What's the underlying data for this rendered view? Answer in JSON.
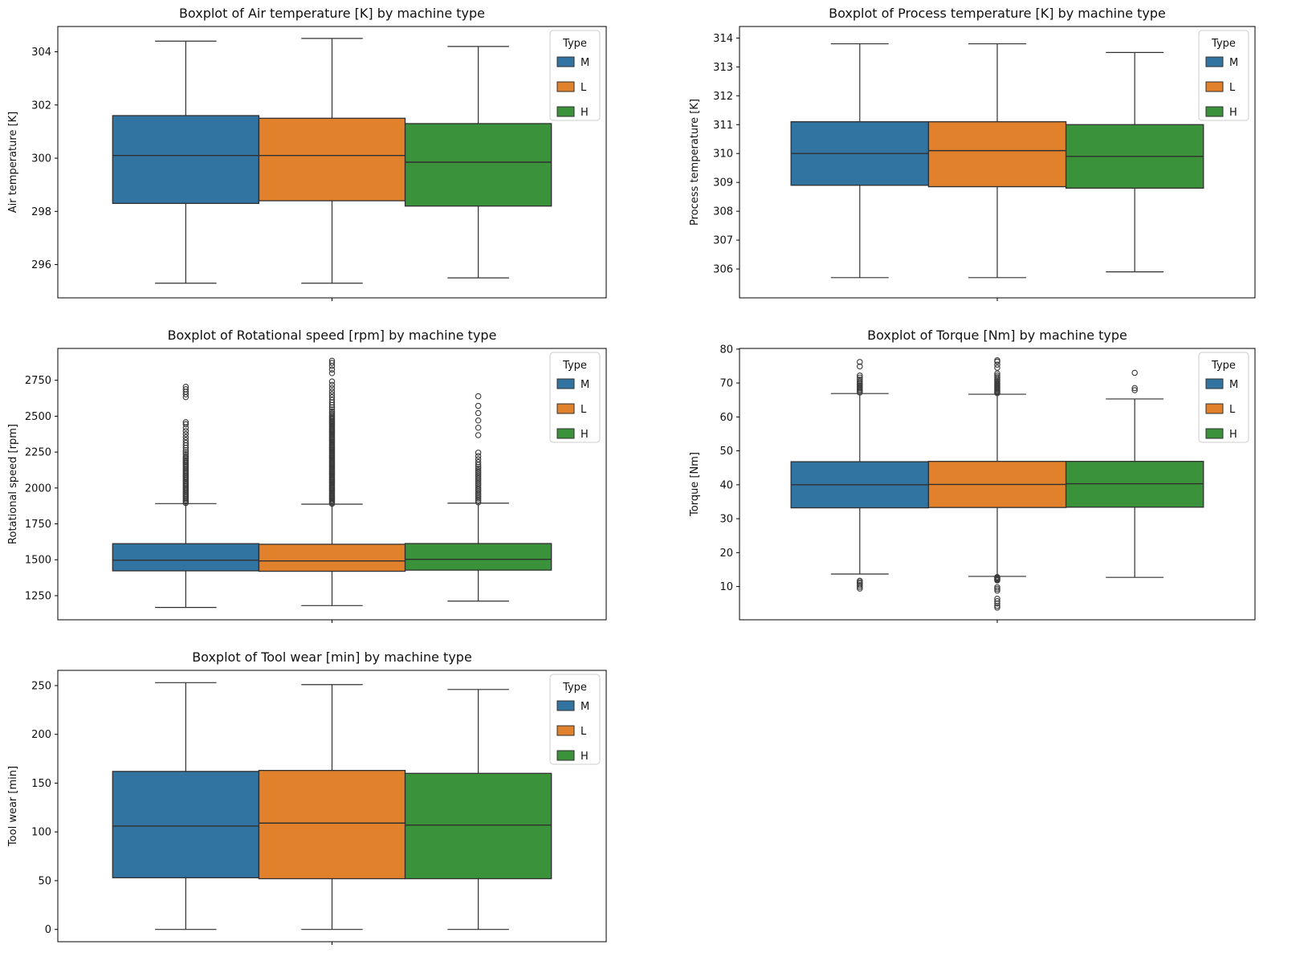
{
  "page": {
    "background": "#ffffff"
  },
  "palette": {
    "M": "#3274a1",
    "L": "#e1812c",
    "H": "#3a923a",
    "edge": "#303030",
    "flier": "#3a3a3a",
    "frame": "#000000",
    "legend_border": "#cccccc"
  },
  "legend": {
    "title": "Type",
    "entries": [
      {
        "label": "M",
        "color": "M"
      },
      {
        "label": "L",
        "color": "L"
      },
      {
        "label": "H",
        "color": "H"
      }
    ]
  },
  "chart_data": [
    {
      "type": "box",
      "title": "Boxplot of Air temperature [K] by machine type",
      "ylabel": "Air temperature [K]",
      "yticks": [
        296,
        298,
        300,
        302,
        304
      ],
      "ylim": [
        294.75,
        304.95
      ],
      "grid": false,
      "legend_position": "upper-right",
      "series": [
        {
          "name": "M",
          "color": "M",
          "whislo": 295.3,
          "q1": 298.3,
          "med": 300.1,
          "q3": 301.6,
          "whishi": 304.4,
          "outliers": []
        },
        {
          "name": "L",
          "color": "L",
          "whislo": 295.3,
          "q1": 298.4,
          "med": 300.1,
          "q3": 301.5,
          "whishi": 304.5,
          "outliers": []
        },
        {
          "name": "H",
          "color": "H",
          "whislo": 295.5,
          "q1": 298.2,
          "med": 299.85,
          "q3": 301.3,
          "whishi": 304.2,
          "outliers": []
        }
      ]
    },
    {
      "type": "box",
      "title": "Boxplot of Process temperature [K] by machine type",
      "ylabel": "Process temperature [K]",
      "yticks": [
        306,
        307,
        308,
        309,
        310,
        311,
        312,
        313,
        314
      ],
      "ylim": [
        305.0,
        314.4
      ],
      "grid": false,
      "legend_position": "upper-right",
      "series": [
        {
          "name": "M",
          "color": "M",
          "whislo": 305.7,
          "q1": 308.9,
          "med": 310.0,
          "q3": 311.1,
          "whishi": 313.8,
          "outliers": []
        },
        {
          "name": "L",
          "color": "L",
          "whislo": 305.7,
          "q1": 308.85,
          "med": 310.1,
          "q3": 311.1,
          "whishi": 313.8,
          "outliers": []
        },
        {
          "name": "H",
          "color": "H",
          "whislo": 305.9,
          "q1": 308.8,
          "med": 309.9,
          "q3": 311.0,
          "whishi": 313.5,
          "outliers": []
        }
      ]
    },
    {
      "type": "box",
      "title": "Boxplot of Rotational speed [rpm] by machine type",
      "ylabel": "Rotational speed [rpm]",
      "yticks": [
        1250,
        1500,
        1750,
        2000,
        2250,
        2500,
        2750
      ],
      "ylim": [
        1082,
        2972
      ],
      "grid": false,
      "legend_position": "upper-right",
      "series": [
        {
          "name": "M",
          "color": "M",
          "whislo": 1168,
          "q1": 1423,
          "med": 1497,
          "q3": 1612,
          "whishi": 1891,
          "outliers": [
            1895,
            1904,
            1913,
            1922,
            1931,
            1940,
            1949,
            1958,
            1967,
            1976,
            1985,
            1994,
            2003,
            2012,
            2021,
            2030,
            2039,
            2048,
            2057,
            2066,
            2075,
            2084,
            2093,
            2102,
            2111,
            2120,
            2129,
            2138,
            2147,
            2156,
            2165,
            2174,
            2183,
            2192,
            2201,
            2210,
            2222,
            2235,
            2249,
            2264,
            2280,
            2297,
            2315,
            2334,
            2354,
            2375,
            2397,
            2420,
            2444,
            2458,
            2633,
            2652,
            2670,
            2688,
            2705
          ]
        },
        {
          "name": "L",
          "color": "L",
          "whislo": 1181,
          "q1": 1420,
          "med": 1492,
          "q3": 1608,
          "whishi": 1887,
          "outliers": [
            1890,
            1898,
            1906,
            1914,
            1922,
            1930,
            1938,
            1946,
            1954,
            1962,
            1970,
            1978,
            1986,
            1994,
            2002,
            2010,
            2018,
            2026,
            2034,
            2042,
            2050,
            2058,
            2066,
            2074,
            2082,
            2090,
            2098,
            2106,
            2114,
            2122,
            2130,
            2138,
            2146,
            2154,
            2162,
            2170,
            2178,
            2186,
            2194,
            2202,
            2210,
            2218,
            2226,
            2234,
            2242,
            2250,
            2258,
            2266,
            2274,
            2282,
            2290,
            2298,
            2306,
            2314,
            2322,
            2330,
            2338,
            2346,
            2354,
            2362,
            2370,
            2378,
            2386,
            2394,
            2402,
            2410,
            2418,
            2426,
            2434,
            2442,
            2450,
            2458,
            2466,
            2474,
            2482,
            2490,
            2498,
            2508,
            2520,
            2533,
            2547,
            2562,
            2578,
            2595,
            2613,
            2632,
            2652,
            2673,
            2695,
            2718,
            2742,
            2800,
            2825,
            2850,
            2871,
            2886
          ]
        },
        {
          "name": "H",
          "color": "H",
          "whislo": 1212,
          "q1": 1428,
          "med": 1503,
          "q3": 1613,
          "whishi": 1894,
          "outliers": [
            1900,
            1913,
            1926,
            1939,
            1952,
            1965,
            1978,
            1991,
            2004,
            2017,
            2030,
            2043,
            2056,
            2069,
            2082,
            2095,
            2108,
            2121,
            2134,
            2147,
            2162,
            2180,
            2200,
            2222,
            2246,
            2368,
            2420,
            2470,
            2522,
            2572,
            2639
          ]
        }
      ]
    },
    {
      "type": "box",
      "title": "Boxplot of Torque [Nm] by machine type",
      "ylabel": "Torque [Nm]",
      "yticks": [
        10,
        20,
        30,
        40,
        50,
        60,
        70,
        80
      ],
      "ylim": [
        0.2,
        80.2
      ],
      "grid": false,
      "legend_position": "upper-right",
      "series": [
        {
          "name": "M",
          "color": "M",
          "whislo": 13.7,
          "q1": 33.2,
          "med": 40.0,
          "q3": 46.8,
          "whishi": 66.9,
          "outliers": [
            67.2,
            67.6,
            68.0,
            68.4,
            68.8,
            69.2,
            69.6,
            70.0,
            70.5,
            71.0,
            71.6,
            72.2,
            74.9,
            76.2,
            11.7,
            11.3,
            10.9,
            10.4,
            9.9,
            9.4
          ]
        },
        {
          "name": "L",
          "color": "L",
          "whislo": 13.0,
          "q1": 33.3,
          "med": 40.1,
          "q3": 46.9,
          "whishi": 66.7,
          "outliers": [
            67.0,
            67.3,
            67.6,
            67.9,
            68.2,
            68.5,
            68.8,
            69.1,
            69.4,
            69.7,
            70.0,
            70.4,
            70.8,
            71.2,
            71.7,
            72.2,
            72.8,
            74.5,
            75.4,
            76.3,
            76.7,
            12.8,
            12.6,
            12.4,
            12.2,
            12.0,
            11.8,
            9.8,
            9.3,
            8.8,
            6.4,
            5.7,
            5.0,
            4.3,
            3.8
          ]
        },
        {
          "name": "H",
          "color": "H",
          "whislo": 12.7,
          "q1": 33.4,
          "med": 40.3,
          "q3": 46.9,
          "whishi": 65.3,
          "outliers": [
            67.9,
            68.5,
            73.0
          ]
        }
      ]
    },
    {
      "type": "box",
      "title": "Boxplot of Tool wear [min] by machine type",
      "ylabel": "Tool wear [min]",
      "yticks": [
        0,
        50,
        100,
        150,
        200,
        250
      ],
      "ylim": [
        -12.6,
        265.6
      ],
      "grid": false,
      "legend_position": "upper-right",
      "series": [
        {
          "name": "M",
          "color": "M",
          "whislo": 0,
          "q1": 53,
          "med": 106,
          "q3": 162,
          "whishi": 253,
          "outliers": []
        },
        {
          "name": "L",
          "color": "L",
          "whislo": 0,
          "q1": 52,
          "med": 109,
          "q3": 163,
          "whishi": 251,
          "outliers": []
        },
        {
          "name": "H",
          "color": "H",
          "whislo": 0,
          "q1": 52,
          "med": 107,
          "q3": 160,
          "whishi": 246,
          "outliers": []
        }
      ]
    }
  ]
}
